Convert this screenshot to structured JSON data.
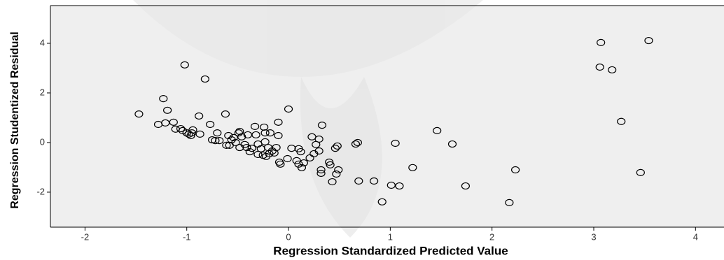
{
  "chart_data": {
    "type": "scatter",
    "xlabel": "Regression Standardized Predicted Value",
    "ylabel": "Regression Studentized Residual",
    "x": [
      -1.47,
      -1.28,
      -1.23,
      -1.19,
      -1.21,
      -1.13,
      -1.11,
      -1.06,
      -1.04,
      -1.02,
      -1.0,
      -0.98,
      -0.95,
      -0.94,
      -0.96,
      -0.87,
      -0.88,
      -0.82,
      -0.77,
      -0.75,
      -0.72,
      -0.7,
      -0.68,
      -0.62,
      -0.61,
      -0.58,
      -0.59,
      -0.56,
      -0.54,
      -0.52,
      -0.49,
      -0.48,
      -0.46,
      -0.48,
      -0.43,
      -0.4,
      -0.41,
      -0.38,
      -0.36,
      -0.33,
      -0.32,
      -0.3,
      -0.3,
      -0.27,
      -0.25,
      -0.23,
      -0.24,
      -0.22,
      -0.23,
      -0.19,
      -0.18,
      -0.2,
      -0.16,
      -0.14,
      -0.12,
      -0.1,
      -0.1,
      -0.09,
      -0.08,
      -0.01,
      0.0,
      0.03,
      0.08,
      0.1,
      0.1,
      0.12,
      0.13,
      0.15,
      0.21,
      0.23,
      0.25,
      0.27,
      0.3,
      0.3,
      0.33,
      0.32,
      0.32,
      0.4,
      0.41,
      0.43,
      0.46,
      0.47,
      0.49,
      0.48,
      0.66,
      0.68,
      0.69,
      0.84,
      0.92,
      1.01,
      1.05,
      1.09,
      1.22,
      1.46,
      1.61,
      1.74,
      2.17,
      2.23,
      3.06,
      3.07,
      3.18,
      3.27,
      3.46,
      3.54
    ],
    "y": [
      1.15,
      0.73,
      1.77,
      1.3,
      0.79,
      0.82,
      0.54,
      0.56,
      0.48,
      3.13,
      0.39,
      0.34,
      0.39,
      0.51,
      0.28,
      0.34,
      1.07,
      2.56,
      0.73,
      0.11,
      0.08,
      0.39,
      0.08,
      1.15,
      -0.11,
      -0.11,
      0.28,
      0.11,
      0.2,
      0.0,
      0.39,
      -0.2,
      0.23,
      0.45,
      -0.08,
      0.31,
      -0.2,
      -0.37,
      -0.23,
      0.65,
      0.31,
      -0.06,
      -0.48,
      -0.25,
      -0.51,
      0.39,
      0.62,
      -0.56,
      0.03,
      -0.45,
      0.39,
      -0.2,
      -0.34,
      -0.42,
      -0.2,
      0.82,
      0.28,
      -0.79,
      -0.87,
      -0.65,
      1.35,
      -0.23,
      -0.73,
      -0.25,
      -0.87,
      -0.37,
      -1.01,
      -0.82,
      -0.62,
      0.23,
      -0.45,
      -0.08,
      0.14,
      -0.34,
      0.7,
      -1.1,
      -1.24,
      -0.79,
      -0.9,
      -1.58,
      -0.23,
      -1.27,
      -1.1,
      -0.14,
      -0.06,
      0.0,
      -1.55,
      -1.55,
      -2.39,
      -1.72,
      -0.03,
      -1.75,
      -1.01,
      0.48,
      -0.06,
      -1.75,
      -2.42,
      -1.1,
      3.04,
      4.03,
      2.93,
      0.85,
      -1.21,
      4.11
    ],
    "xlim": [
      -2.34,
      4.28
    ],
    "xticks": [
      -2,
      -1,
      0,
      1,
      2,
      3,
      4
    ],
    "ylim": [
      -3.41,
      5.52
    ],
    "yticks": [
      -2,
      0,
      2,
      4
    ],
    "color": "#000000"
  }
}
